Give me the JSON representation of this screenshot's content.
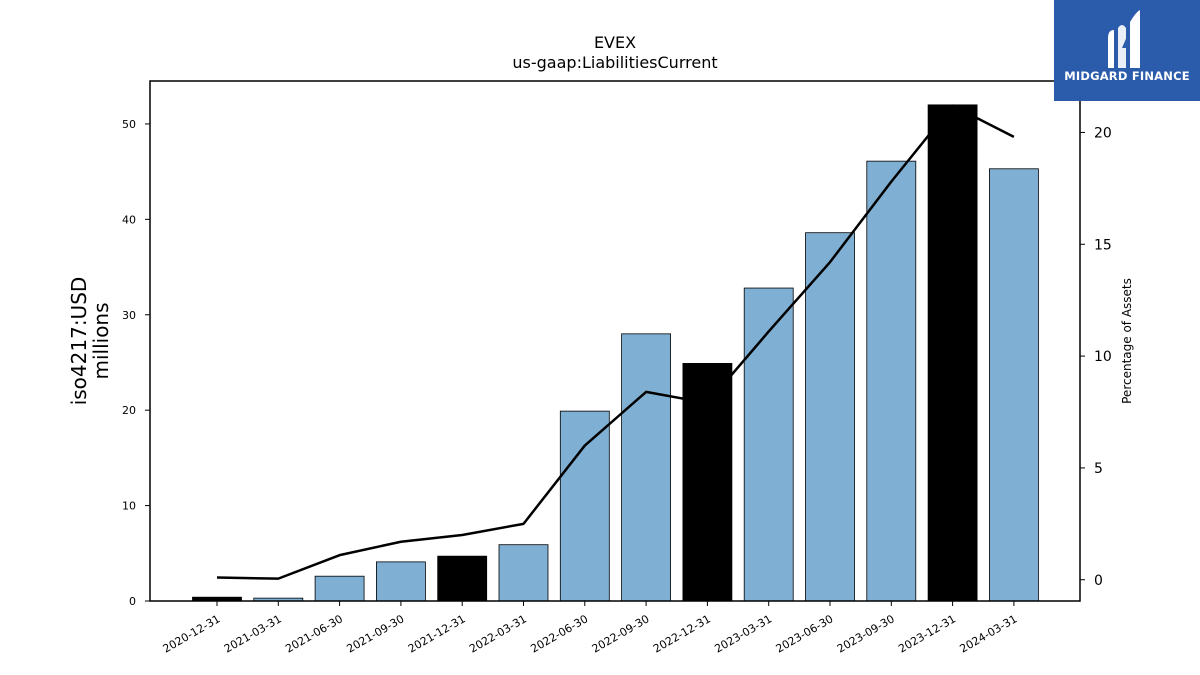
{
  "chart_data": {
    "type": "bar",
    "title": "EVEX",
    "subtitle": "us-gaap:LiabilitiesCurrent",
    "ylabel": "iso4217:USD\nmillions",
    "ylabel_right": "Percentage of Assets",
    "ylim": [
      0,
      54.5
    ],
    "ylim_right": [
      -0.95,
      22.3
    ],
    "yticks": [
      0,
      10,
      20,
      30,
      40,
      50
    ],
    "yticks_right": [
      0,
      5,
      10,
      15,
      20
    ],
    "grid": false,
    "categories": [
      "2020-12-31",
      "2021-03-31",
      "2021-06-30",
      "2021-09-30",
      "2021-12-31",
      "2022-03-31",
      "2022-06-30",
      "2022-09-30",
      "2022-12-31",
      "2023-03-31",
      "2023-06-30",
      "2023-09-30",
      "2023-12-31",
      "2024-03-31"
    ],
    "series": [
      {
        "values": [
          0.4,
          0.3,
          2.6,
          4.1,
          4.7,
          5.9,
          19.9,
          28.0,
          24.9,
          32.8,
          38.6,
          46.1,
          52.0,
          45.3
        ],
        "highlight": [
          true,
          false,
          false,
          false,
          true,
          false,
          false,
          false,
          true,
          false,
          false,
          false,
          true,
          false
        ],
        "color": "#7fafd3",
        "highlight_color": "#000000",
        "axis": "left"
      },
      {
        "type": "line",
        "values": [
          0.1,
          0.05,
          1.1,
          1.7,
          2.0,
          2.5,
          6.0,
          8.4,
          7.9,
          11.1,
          14.2,
          17.8,
          21.2,
          19.8
        ],
        "color": "#000000",
        "axis": "right"
      }
    ]
  },
  "logo": {
    "text": "MIDGARD FINANCE",
    "background": "#2b5bab"
  }
}
